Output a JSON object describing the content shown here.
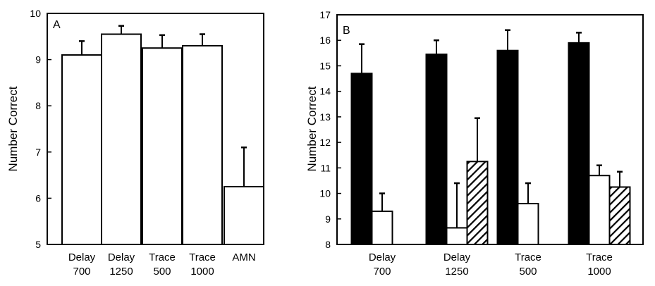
{
  "chart_data": [
    {
      "type": "bar",
      "panel_label": "A",
      "ylabel": "Number   Correct",
      "ylim": [
        5,
        10
      ],
      "yticks": [
        5,
        6,
        7,
        8,
        9,
        10
      ],
      "grid": false,
      "categories": [
        {
          "line1": "Delay",
          "line2": "700"
        },
        {
          "line1": "Delay",
          "line2": "1250"
        },
        {
          "line1": "Trace",
          "line2": "500"
        },
        {
          "line1": "Trace",
          "line2": "1000"
        },
        {
          "line1": "AMN",
          "line2": ""
        }
      ],
      "series": [
        {
          "fill": "white",
          "values": [
            9.1,
            9.55,
            9.25,
            9.3,
            6.25
          ],
          "errors": [
            0.3,
            0.18,
            0.28,
            0.25,
            0.85
          ]
        }
      ]
    },
    {
      "type": "bar",
      "panel_label": "B",
      "ylabel": "Number  Correct",
      "ylim": [
        8,
        17
      ],
      "yticks": [
        8,
        9,
        10,
        11,
        12,
        13,
        14,
        15,
        16,
        17
      ],
      "grid": false,
      "categories": [
        {
          "line1": "Delay",
          "line2": "700"
        },
        {
          "line1": "Delay",
          "line2": "1250"
        },
        {
          "line1": "Trace",
          "line2": "500"
        },
        {
          "line1": "Trace",
          "line2": "1000"
        }
      ],
      "series": [
        {
          "fill": "black",
          "values": [
            14.7,
            15.45,
            15.6,
            15.9
          ],
          "errors": [
            1.15,
            0.55,
            0.8,
            0.4
          ]
        },
        {
          "fill": "white",
          "values": [
            9.3,
            8.65,
            9.6,
            10.7
          ],
          "errors": [
            0.7,
            1.75,
            0.8,
            0.4
          ]
        },
        {
          "fill": "hatched",
          "values": [
            null,
            11.25,
            null,
            10.25
          ],
          "errors": [
            null,
            1.7,
            null,
            0.6
          ]
        }
      ]
    }
  ]
}
